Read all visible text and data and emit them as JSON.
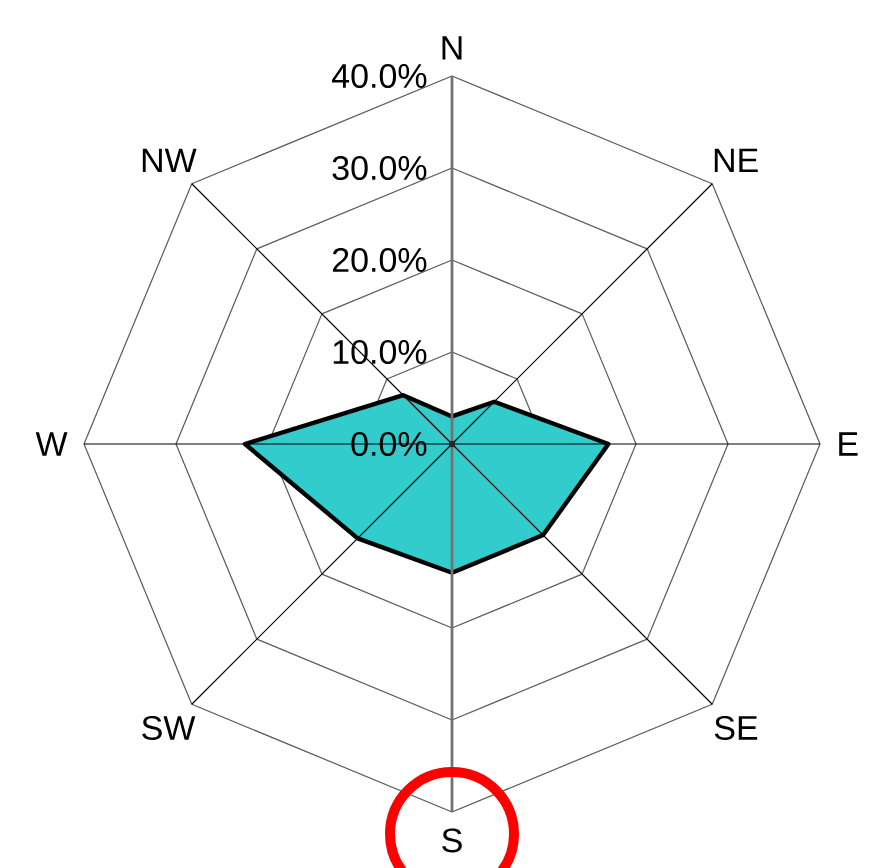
{
  "chart_data": {
    "type": "radar",
    "categories": [
      "N",
      "NE",
      "E",
      "SE",
      "S",
      "SW",
      "W",
      "NW"
    ],
    "series": [
      {
        "color": "#33cccc",
        "values": [
          3,
          6.5,
          17,
          14,
          14,
          14.5,
          22.5,
          7.5
        ]
      }
    ],
    "ylim": [
      0,
      40
    ],
    "yticks": [
      {
        "value": 0,
        "label": "0.0%"
      },
      {
        "value": 10,
        "label": "10.0%"
      },
      {
        "value": 20,
        "label": "20.0%"
      },
      {
        "value": 30,
        "label": "30.0%"
      },
      {
        "value": 40,
        "label": "40.0%"
      }
    ],
    "grid": true
  }
}
